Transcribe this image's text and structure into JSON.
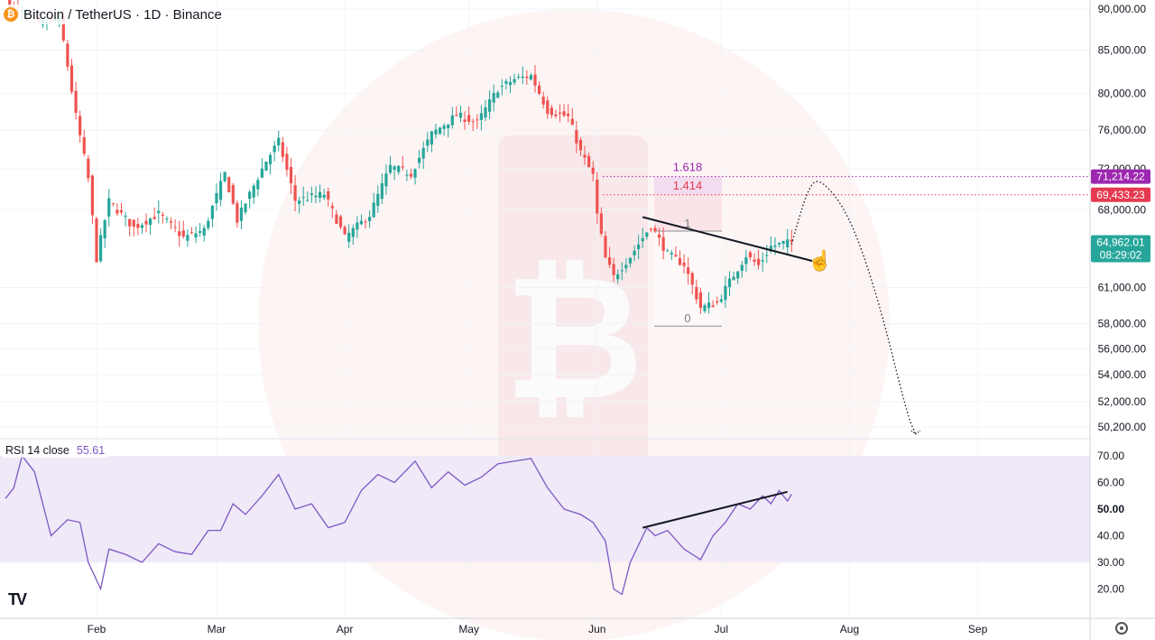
{
  "header": {
    "symbol_icon": "bitcoin-icon",
    "title": "Bitcoin / TetherUS · 1D · Binance"
  },
  "rsi": {
    "label": "RSI 14 close",
    "value": "55.61"
  },
  "colors": {
    "up": "#26a69a",
    "down": "#ef5350",
    "rsi_line": "#7e57c2",
    "fib_1618": "#9c27b0",
    "fib_1414": "#e53950",
    "price_tag": "#26a69a"
  },
  "chart_data": [
    {
      "type": "candlestick",
      "title": "Bitcoin / TetherUS · 1D · Binance",
      "x_ticks": [
        "Feb",
        "Mar",
        "Apr",
        "May",
        "Jun",
        "Jul",
        "Aug",
        "Sep"
      ],
      "y_ticks": [
        "90,000.00",
        "85,000.00",
        "80,000.00",
        "76,000.00",
        "72,000.00",
        "68,000.00",
        "61,000.00",
        "58,000.00",
        "56,000.00",
        "54,000.00",
        "52,000.00",
        "50,200.00"
      ],
      "y_tick_values": [
        90000,
        85000,
        80000,
        76000,
        72000,
        68000,
        61000,
        58000,
        56000,
        54000,
        52000,
        50200
      ],
      "y_scale": "log",
      "ylim": [
        46500,
        91500
      ],
      "price_tags": [
        {
          "label": "71,214.22",
          "value": 71214.22,
          "color": "#9c27b0"
        },
        {
          "label": "69,433.23",
          "value": 69433.23,
          "color": "#e53950"
        },
        {
          "label": "64,962.01",
          "value": 64962.01,
          "color": "#26a69a",
          "sub": "08:29:02"
        }
      ],
      "fibonacci": [
        {
          "label": "1.618",
          "value": 71214.22
        },
        {
          "label": "1.414",
          "value": 69433.23
        },
        {
          "label": "1",
          "value": 66000
        },
        {
          "label": "0",
          "value": 57800
        }
      ],
      "close_path": [
        {
          "date": "2024-01-10",
          "close": 90800
        },
        {
          "date": "2024-01-18",
          "close": 88200
        },
        {
          "date": "2024-01-23",
          "close": 88800
        },
        {
          "date": "2024-01-27",
          "close": 77500
        },
        {
          "date": "2024-01-30",
          "close": 71000
        },
        {
          "date": "2024-02-01",
          "close": 63500
        },
        {
          "date": "2024-02-04",
          "close": 68800
        },
        {
          "date": "2024-02-10",
          "close": 66300
        },
        {
          "date": "2024-02-16",
          "close": 67600
        },
        {
          "date": "2024-02-22",
          "close": 65400
        },
        {
          "date": "2024-02-27",
          "close": 66100
        },
        {
          "date": "2024-03-03",
          "close": 71500
        },
        {
          "date": "2024-03-06",
          "close": 67000
        },
        {
          "date": "2024-03-13",
          "close": 72800
        },
        {
          "date": "2024-03-16",
          "close": 74800
        },
        {
          "date": "2024-03-20",
          "close": 68900
        },
        {
          "date": "2024-03-27",
          "close": 69500
        },
        {
          "date": "2024-04-01",
          "close": 65400
        },
        {
          "date": "2024-04-07",
          "close": 67500
        },
        {
          "date": "2024-04-12",
          "close": 72200
        },
        {
          "date": "2024-04-17",
          "close": 71500
        },
        {
          "date": "2024-04-22",
          "close": 75600
        },
        {
          "date": "2024-04-28",
          "close": 77600
        },
        {
          "date": "2024-05-03",
          "close": 76800
        },
        {
          "date": "2024-05-08",
          "close": 80500
        },
        {
          "date": "2024-05-12",
          "close": 81600
        },
        {
          "date": "2024-05-16",
          "close": 82000
        },
        {
          "date": "2024-05-20",
          "close": 78100
        },
        {
          "date": "2024-05-25",
          "close": 77400
        },
        {
          "date": "2024-05-28",
          "close": 73700
        },
        {
          "date": "2024-05-31",
          "close": 71300
        },
        {
          "date": "2024-06-01",
          "close": 67500
        },
        {
          "date": "2024-06-03",
          "close": 63500
        },
        {
          "date": "2024-06-05",
          "close": 61900
        },
        {
          "date": "2024-06-09",
          "close": 63700
        },
        {
          "date": "2024-06-14",
          "close": 66500
        },
        {
          "date": "2024-06-18",
          "close": 63900
        },
        {
          "date": "2024-06-22",
          "close": 63000
        },
        {
          "date": "2024-06-26",
          "close": 59300
        },
        {
          "date": "2024-06-30",
          "close": 59700
        },
        {
          "date": "2024-07-03",
          "close": 61500
        },
        {
          "date": "2024-07-07",
          "close": 63800
        },
        {
          "date": "2024-07-10",
          "close": 62900
        },
        {
          "date": "2024-07-13",
          "close": 64600
        },
        {
          "date": "2024-07-16",
          "close": 64900
        },
        {
          "date": "2024-07-18",
          "close": 64962
        }
      ],
      "trendline": [
        {
          "date": "2024-06-12",
          "price": 67300
        },
        {
          "date": "2024-07-23",
          "price": 63300
        }
      ],
      "projection_path": [
        {
          "date": "2024-07-18",
          "price": 64800
        },
        {
          "date": "2024-07-22",
          "price": 70200
        },
        {
          "date": "2024-07-25",
          "price": 71100
        },
        {
          "date": "2024-08-01",
          "price": 67500
        },
        {
          "date": "2024-08-08",
          "price": 60000
        },
        {
          "date": "2024-08-15",
          "price": 51000
        },
        {
          "date": "2024-08-17",
          "price": 49700
        }
      ]
    },
    {
      "type": "line",
      "series": [
        {
          "name": "RSI 14 close",
          "last_value": 55.61
        }
      ],
      "y_ticks": [
        "70.00",
        "60.00",
        "50.00",
        "40.00",
        "30.00",
        "20.00"
      ],
      "y_tick_values": [
        70,
        60,
        50,
        40,
        30,
        20
      ],
      "ylim": [
        12.5,
        76
      ],
      "band": [
        30,
        70
      ],
      "points": [
        {
          "date": "2024-01-10",
          "value": 54
        },
        {
          "date": "2024-01-12",
          "value": 58
        },
        {
          "date": "2024-01-14",
          "value": 70
        },
        {
          "date": "2024-01-17",
          "value": 64
        },
        {
          "date": "2024-01-21",
          "value": 40
        },
        {
          "date": "2024-01-25",
          "value": 46
        },
        {
          "date": "2024-01-28",
          "value": 45
        },
        {
          "date": "2024-01-30",
          "value": 30
        },
        {
          "date": "2024-02-02",
          "value": 20
        },
        {
          "date": "2024-02-04",
          "value": 35
        },
        {
          "date": "2024-02-08",
          "value": 33
        },
        {
          "date": "2024-02-12",
          "value": 30
        },
        {
          "date": "2024-02-16",
          "value": 37
        },
        {
          "date": "2024-02-20",
          "value": 34
        },
        {
          "date": "2024-02-24",
          "value": 33
        },
        {
          "date": "2024-02-28",
          "value": 42
        },
        {
          "date": "2024-03-02",
          "value": 42
        },
        {
          "date": "2024-03-05",
          "value": 52
        },
        {
          "date": "2024-03-08",
          "value": 48
        },
        {
          "date": "2024-03-12",
          "value": 55
        },
        {
          "date": "2024-03-16",
          "value": 63
        },
        {
          "date": "2024-03-20",
          "value": 50
        },
        {
          "date": "2024-03-24",
          "value": 52
        },
        {
          "date": "2024-03-28",
          "value": 43
        },
        {
          "date": "2024-04-01",
          "value": 45
        },
        {
          "date": "2024-04-05",
          "value": 57
        },
        {
          "date": "2024-04-09",
          "value": 63
        },
        {
          "date": "2024-04-13",
          "value": 60
        },
        {
          "date": "2024-04-18",
          "value": 68
        },
        {
          "date": "2024-04-22",
          "value": 58
        },
        {
          "date": "2024-04-26",
          "value": 64
        },
        {
          "date": "2024-04-30",
          "value": 59
        },
        {
          "date": "2024-05-04",
          "value": 62
        },
        {
          "date": "2024-05-08",
          "value": 67
        },
        {
          "date": "2024-05-12",
          "value": 68
        },
        {
          "date": "2024-05-16",
          "value": 69
        },
        {
          "date": "2024-05-20",
          "value": 58
        },
        {
          "date": "2024-05-24",
          "value": 50
        },
        {
          "date": "2024-05-28",
          "value": 48
        },
        {
          "date": "2024-05-31",
          "value": 45
        },
        {
          "date": "2024-06-03",
          "value": 38
        },
        {
          "date": "2024-06-05",
          "value": 20
        },
        {
          "date": "2024-06-07",
          "value": 18
        },
        {
          "date": "2024-06-09",
          "value": 30
        },
        {
          "date": "2024-06-13",
          "value": 43
        },
        {
          "date": "2024-06-15",
          "value": 40
        },
        {
          "date": "2024-06-18",
          "value": 42
        },
        {
          "date": "2024-06-22",
          "value": 35
        },
        {
          "date": "2024-06-26",
          "value": 31
        },
        {
          "date": "2024-06-29",
          "value": 40
        },
        {
          "date": "2024-07-02",
          "value": 45
        },
        {
          "date": "2024-07-05",
          "value": 52
        },
        {
          "date": "2024-07-08",
          "value": 50
        },
        {
          "date": "2024-07-11",
          "value": 55
        },
        {
          "date": "2024-07-13",
          "value": 52
        },
        {
          "date": "2024-07-15",
          "value": 57
        },
        {
          "date": "2024-07-17",
          "value": 53
        },
        {
          "date": "2024-07-18",
          "value": 55.61
        }
      ],
      "trendline": [
        {
          "date": "2024-06-12",
          "value": 43
        },
        {
          "date": "2024-07-17",
          "value": 56.5
        }
      ]
    }
  ]
}
